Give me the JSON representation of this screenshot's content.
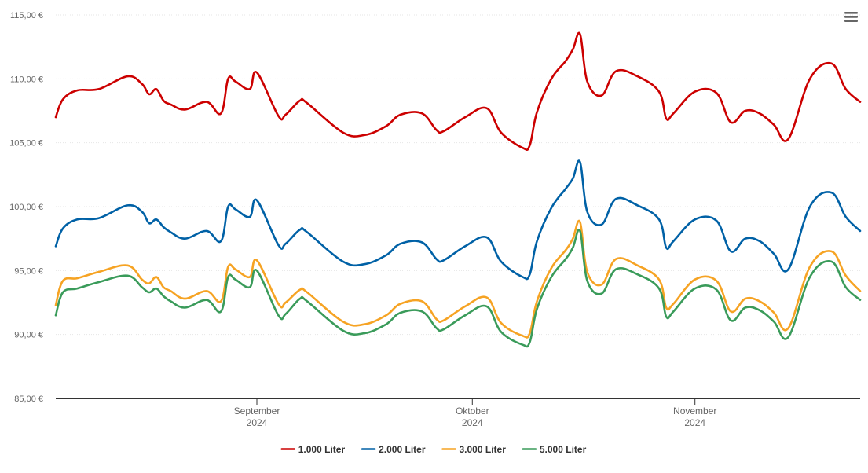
{
  "menu": {
    "icon": "hamburger-menu-icon"
  },
  "chart_data": {
    "type": "line",
    "title": "",
    "xlabel": "",
    "ylabel": "",
    "ylim": [
      85,
      115
    ],
    "y_ticks": [
      85,
      90,
      95,
      100,
      105,
      110,
      115
    ],
    "y_tick_labels": [
      "85,00 €",
      "90,00 €",
      "95,00 €",
      "100,00 €",
      "105,00 €",
      "110,00 €",
      "115,00 €"
    ],
    "xlim": [
      "2024-08-04",
      "2024-11-24"
    ],
    "x_ticks": [
      {
        "date": "2024-09-01",
        "month": "September",
        "year": "2024"
      },
      {
        "date": "2024-10-01",
        "month": "Oktober",
        "year": "2024"
      },
      {
        "date": "2024-11-01",
        "month": "November",
        "year": "2024"
      }
    ],
    "grid": true,
    "legend_position": "bottom-center",
    "x": [
      "2024-08-04",
      "2024-08-05",
      "2024-08-07",
      "2024-08-10",
      "2024-08-14",
      "2024-08-16",
      "2024-08-17",
      "2024-08-18",
      "2024-08-19",
      "2024-08-20",
      "2024-08-22",
      "2024-08-25",
      "2024-08-27",
      "2024-08-28",
      "2024-08-29",
      "2024-08-31",
      "2024-09-01",
      "2024-09-04",
      "2024-09-05",
      "2024-09-07",
      "2024-09-08",
      "2024-09-13",
      "2024-09-16",
      "2024-09-19",
      "2024-09-21",
      "2024-09-24",
      "2024-09-26",
      "2024-09-27",
      "2024-09-30",
      "2024-10-03",
      "2024-10-05",
      "2024-10-08",
      "2024-10-09",
      "2024-10-10",
      "2024-10-12",
      "2024-10-14",
      "2024-10-15",
      "2024-10-16",
      "2024-10-17",
      "2024-10-19",
      "2024-10-21",
      "2024-10-24",
      "2024-10-27",
      "2024-10-28",
      "2024-10-29",
      "2024-11-01",
      "2024-11-04",
      "2024-11-06",
      "2024-11-08",
      "2024-11-10",
      "2024-11-12",
      "2024-11-14",
      "2024-11-17",
      "2024-11-20",
      "2024-11-22",
      "2024-11-24"
    ],
    "series": [
      {
        "name": "1.000 Liter",
        "color": "#cc0000",
        "values": [
          107.0,
          108.4,
          109.1,
          109.2,
          110.2,
          109.6,
          108.8,
          109.2,
          108.3,
          108.0,
          107.6,
          108.2,
          107.3,
          110.0,
          109.8,
          109.2,
          110.5,
          107.1,
          107.2,
          108.3,
          108.1,
          105.8,
          105.6,
          106.3,
          107.2,
          107.3,
          106.0,
          105.9,
          107.0,
          107.7,
          105.8,
          104.6,
          104.8,
          107.4,
          110.0,
          111.4,
          112.3,
          113.5,
          109.8,
          108.7,
          110.6,
          110.2,
          109.0,
          106.9,
          107.3,
          109.0,
          108.9,
          106.6,
          107.5,
          107.3,
          106.4,
          105.3,
          110.0,
          111.2,
          109.2,
          108.2
        ]
      },
      {
        "name": "2.000 Liter",
        "color": "#0061a6",
        "values": [
          96.9,
          98.3,
          99.0,
          99.1,
          100.1,
          99.6,
          98.7,
          99.0,
          98.4,
          98.0,
          97.5,
          98.1,
          97.3,
          100.0,
          99.8,
          99.2,
          100.5,
          97.0,
          97.1,
          98.2,
          98.0,
          95.7,
          95.5,
          96.2,
          97.1,
          97.2,
          95.9,
          95.8,
          96.9,
          97.6,
          95.7,
          94.5,
          94.7,
          97.3,
          99.9,
          101.4,
          102.2,
          103.5,
          99.6,
          98.6,
          100.6,
          100.1,
          99.0,
          96.8,
          97.3,
          99.0,
          98.9,
          96.5,
          97.5,
          97.3,
          96.3,
          95.1,
          100.0,
          101.1,
          99.2,
          98.1
        ]
      },
      {
        "name": "3.000 Liter",
        "color": "#f6a323",
        "values": [
          92.3,
          94.2,
          94.4,
          94.9,
          95.4,
          94.3,
          94.0,
          94.5,
          93.7,
          93.4,
          92.8,
          93.4,
          92.6,
          95.3,
          95.1,
          94.5,
          95.8,
          92.4,
          92.5,
          93.5,
          93.3,
          91.0,
          90.8,
          91.5,
          92.4,
          92.6,
          91.2,
          91.1,
          92.2,
          92.9,
          90.9,
          89.9,
          90.1,
          92.6,
          95.2,
          96.6,
          97.5,
          98.8,
          94.9,
          93.9,
          95.9,
          95.4,
          94.3,
          92.1,
          92.4,
          94.3,
          94.2,
          91.8,
          92.8,
          92.6,
          91.7,
          90.5,
          95.3,
          96.5,
          94.6,
          93.4
        ]
      },
      {
        "name": "5.000 Liter",
        "color": "#3a9b5a",
        "values": [
          91.5,
          93.3,
          93.6,
          94.1,
          94.6,
          93.7,
          93.3,
          93.6,
          93.0,
          92.6,
          92.1,
          92.7,
          91.8,
          94.5,
          94.3,
          93.7,
          95.0,
          91.5,
          91.6,
          92.8,
          92.6,
          90.3,
          90.1,
          90.8,
          91.7,
          91.8,
          90.5,
          90.4,
          91.5,
          92.2,
          90.2,
          89.2,
          89.4,
          92.0,
          94.5,
          95.9,
          96.8,
          98.1,
          94.2,
          93.2,
          95.1,
          94.7,
          93.6,
          91.4,
          91.8,
          93.6,
          93.5,
          91.1,
          92.1,
          91.9,
          91.0,
          89.8,
          94.5,
          95.7,
          93.7,
          92.7
        ]
      }
    ]
  }
}
